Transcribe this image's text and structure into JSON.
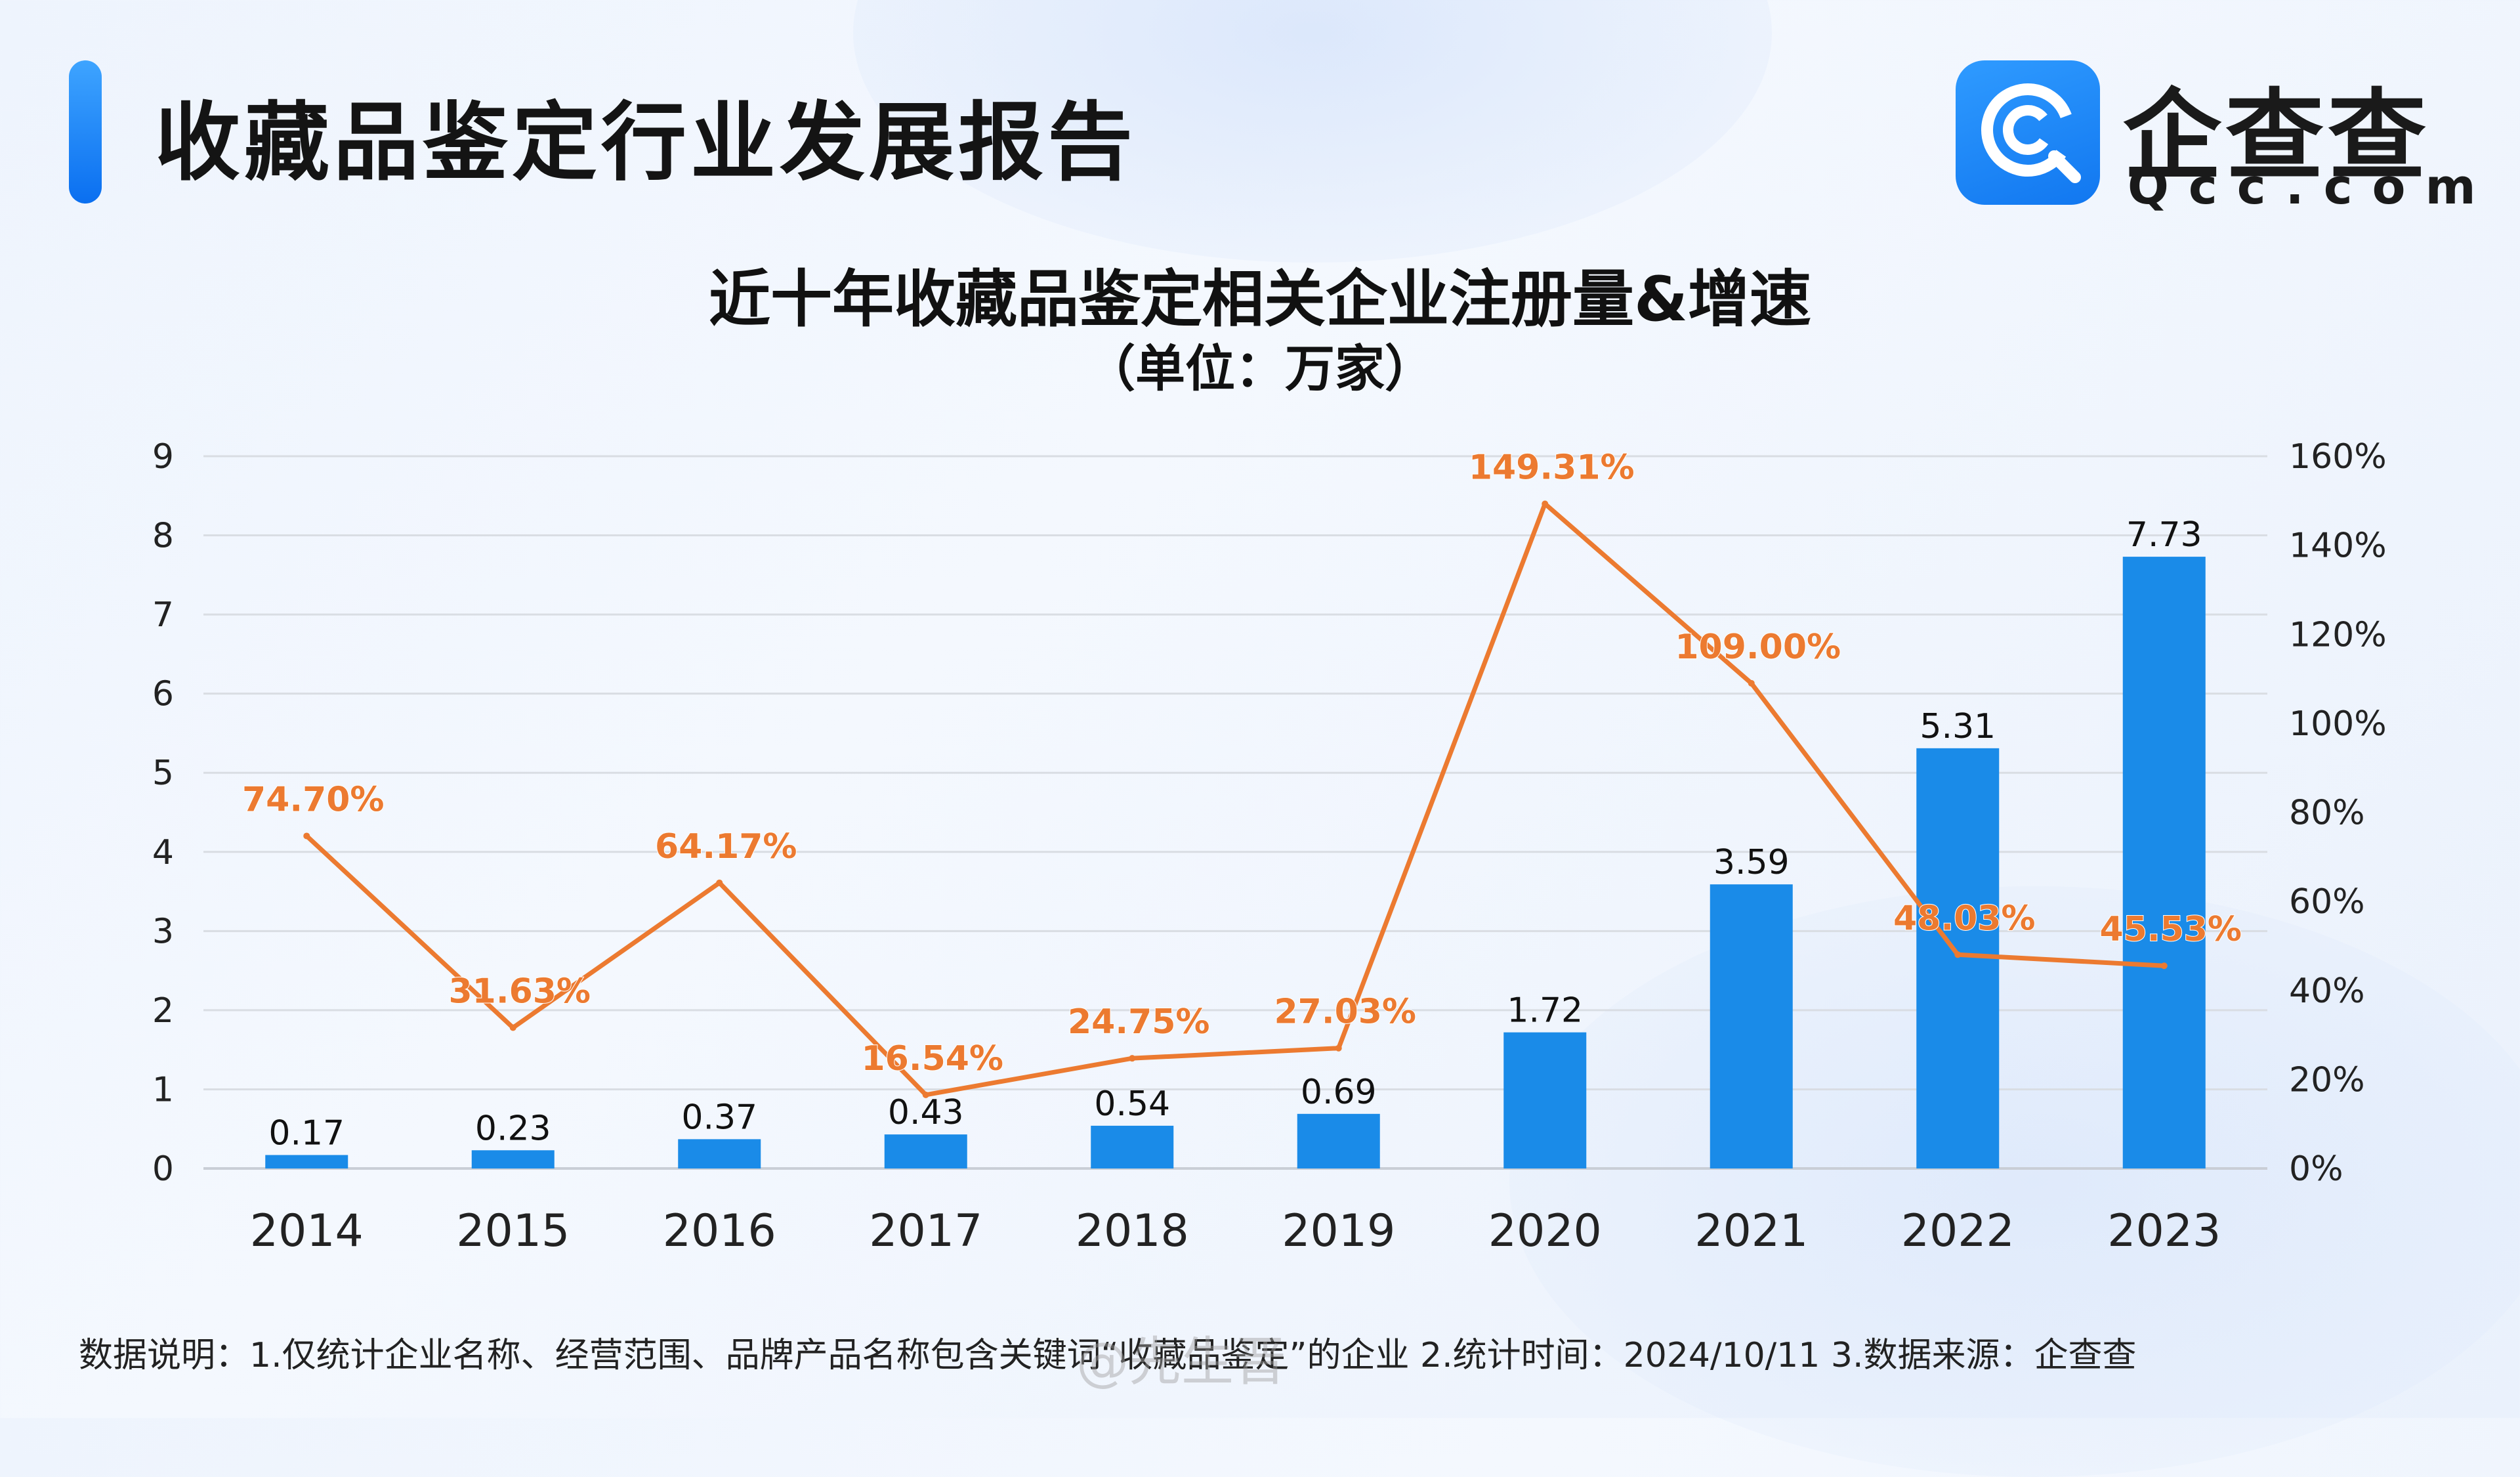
{
  "header": {
    "report_title": "收藏品鉴定行业发展报告",
    "logo_name": "企查查",
    "logo_domain": "Qcc.com"
  },
  "colors": {
    "bar": "#1a8be8",
    "line": "#ec7a30",
    "accent": "#1677f2",
    "grid": "#d9dde3"
  },
  "chart_data": {
    "type": "bar",
    "title": "近十年收藏品鉴定相关企业注册量&增速",
    "subtitle": "（单位：万家）",
    "categories": [
      "2014",
      "2015",
      "2016",
      "2017",
      "2018",
      "2019",
      "2020",
      "2021",
      "2022",
      "2023"
    ],
    "series": [
      {
        "type": "bar",
        "axis": "left",
        "values": [
          0.17,
          0.23,
          0.37,
          0.43,
          0.54,
          0.69,
          1.72,
          3.59,
          5.31,
          7.73
        ],
        "labels": [
          "0.17",
          "0.23",
          "0.37",
          "0.43",
          "0.54",
          "0.69",
          "1.72",
          "3.59",
          "5.31",
          "7.73"
        ]
      },
      {
        "type": "line",
        "axis": "right",
        "values": [
          74.7,
          31.63,
          64.17,
          16.54,
          24.75,
          27.03,
          149.31,
          109.0,
          48.03,
          45.53
        ],
        "labels": [
          "74.70%",
          "31.63%",
          "64.17%",
          "16.54%",
          "24.75%",
          "27.03%",
          "149.31%",
          "109.00%",
          "48.03%",
          "45.53%"
        ]
      }
    ],
    "ylim_left": [
      0,
      9
    ],
    "yticks_left": [
      "0",
      "1",
      "2",
      "3",
      "4",
      "5",
      "6",
      "7",
      "8",
      "9"
    ],
    "ylim_right": [
      0,
      160
    ],
    "yticks_right": [
      "0%",
      "20%",
      "40%",
      "60%",
      "80%",
      "100%",
      "120%",
      "140%",
      "160%"
    ],
    "grid": true,
    "legend": "none"
  },
  "footnote": "数据说明：1.仅统计企业名称、经营范围、品牌产品名称包含关键词“收藏品鉴定”的企业   2.统计时间：2024/10/11    3.数据来源：企查查",
  "watermark": "@先生晋"
}
